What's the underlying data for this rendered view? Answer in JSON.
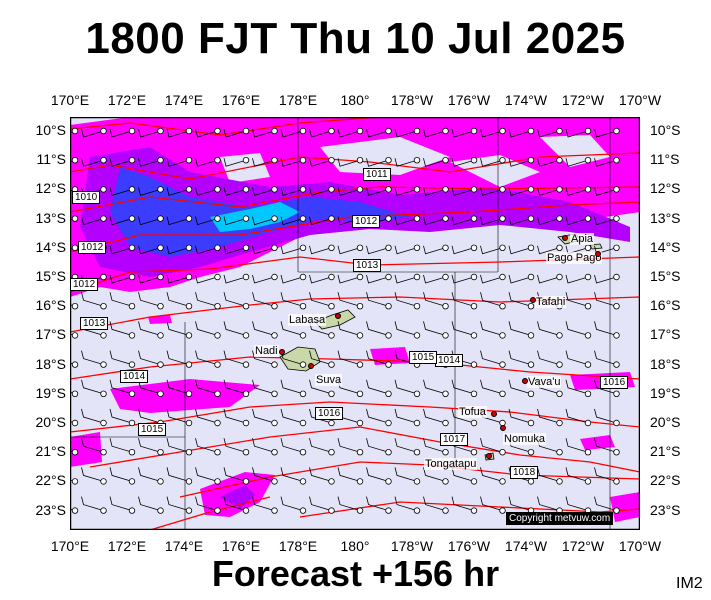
{
  "header": {
    "title": "1800 FJT Thu 10 Jul 2025"
  },
  "footer": {
    "forecast": "Forecast +156 hr",
    "corner_code": "IM2"
  },
  "map": {
    "lon_labels": [
      "170°E",
      "172°E",
      "174°E",
      "176°E",
      "178°E",
      "180°",
      "178°W",
      "176°W",
      "174°W",
      "172°W",
      "170°W"
    ],
    "lat_labels": [
      "10°S",
      "11°S",
      "12°S",
      "13°S",
      "14°S",
      "15°S",
      "16°S",
      "17°S",
      "18°S",
      "19°S",
      "20°S",
      "21°S",
      "22°S",
      "23°S"
    ],
    "places": [
      {
        "name": "Apia"
      },
      {
        "name": "Pago Pago"
      },
      {
        "name": "Tafahi"
      },
      {
        "name": "Labasa"
      },
      {
        "name": "Nadi"
      },
      {
        "name": "Suva"
      },
      {
        "name": "Vava'u"
      },
      {
        "name": "Tofua"
      },
      {
        "name": "Nomuka"
      },
      {
        "name": "Tongatapu"
      }
    ],
    "isobars": [
      "1010",
      "1011",
      "1012",
      "1012",
      "1012",
      "1013",
      "1013",
      "1014",
      "1014",
      "1015",
      "1015",
      "1016",
      "1016",
      "1017",
      "1018"
    ],
    "copyright": "Copyright metvuw.com",
    "colors": {
      "sea": "#e4e4f8",
      "rain_magenta": "#ff00ff",
      "rain_purple": "#b400ff",
      "rain_blue": "#3c3cff",
      "rain_cyan": "#00c8ff",
      "isobar": "#ff0000",
      "land": "#c8d8a8"
    }
  }
}
